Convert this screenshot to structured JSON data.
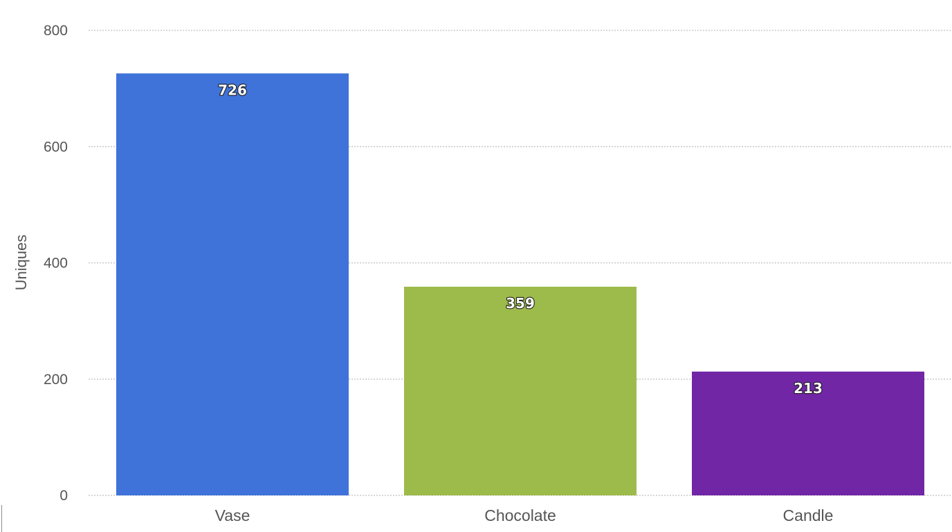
{
  "chart_data": {
    "type": "bar",
    "categories": [
      "Vase",
      "Chocolate",
      "Candle"
    ],
    "values": [
      726,
      359,
      213
    ],
    "colors": [
      "#3f73d9",
      "#9dbb4b",
      "#7126a6"
    ],
    "ylabel": "Uniques",
    "xlabel": "",
    "ylim": [
      0,
      800
    ],
    "yticks": [
      0,
      200,
      400,
      600,
      800
    ],
    "grid": true,
    "data_labels": true
  }
}
